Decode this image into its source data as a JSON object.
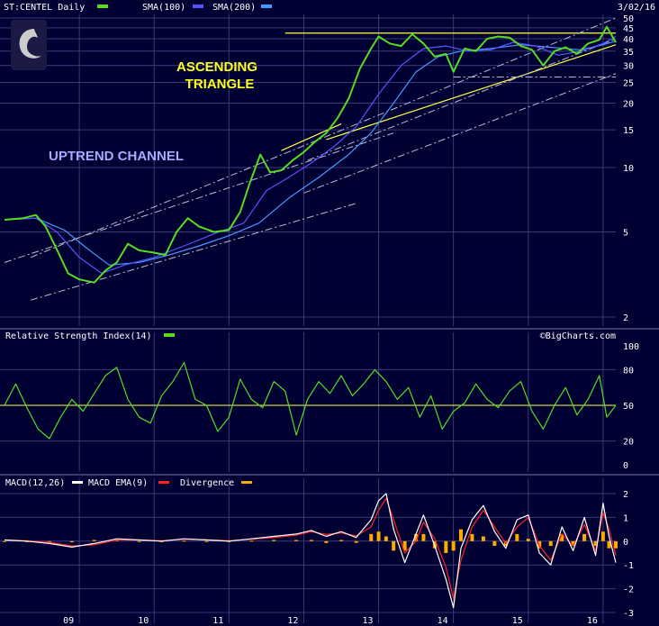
{
  "header": {
    "ticker_label": "ST:CENTEL Daily",
    "sma100_label": "SMA(100)",
    "sma200_label": "SMA(200)",
    "date": "3/02/16",
    "watermark": "©BigCharts.com"
  },
  "colors": {
    "background": "#000033",
    "grid": "#3a3a7a",
    "price": "#55dd22",
    "sma100": "#5555ff",
    "sma200": "#4499ff",
    "triangle": "#ffff44",
    "channel": "#bbbbcc",
    "rsi": "#55dd22",
    "rsi_mid": "#ffff44",
    "macd": "#ffffff",
    "macd_ema": "#ff2222",
    "divergence": "#ffaa00",
    "annotation_triangle": "#ffff22",
    "annotation_channel": "#aaaaff"
  },
  "annotations": {
    "triangle_line1": "ASCENDING",
    "triangle_line2": "TRIANGLE",
    "channel": "UPTREND CHANNEL"
  },
  "rsi_panel": {
    "label": "Relative Strength Index(14)"
  },
  "macd_panel": {
    "macd_label": "MACD(12,26)",
    "ema_label": "MACD EMA(9)",
    "divergence_label": "Divergence"
  },
  "chart_data": [
    {
      "type": "line",
      "scale": "log",
      "ylim": [
        2,
        50
      ],
      "yticks": [
        2,
        5,
        10,
        15,
        20,
        25,
        30,
        35,
        40,
        45,
        50
      ],
      "xticks": [
        "09",
        "10",
        "11",
        "12",
        "13",
        "14",
        "15",
        "16"
      ],
      "xlim": [
        2008.0,
        2016.17
      ],
      "series": [
        {
          "x": [
            2008.0,
            2008.25,
            2008.42,
            2008.55,
            2008.72,
            2008.85,
            2009.0,
            2009.2,
            2009.35,
            2009.5,
            2009.65,
            2009.8,
            2010.0,
            2010.15,
            2010.3,
            2010.45,
            2010.6,
            2010.8,
            2011.0,
            2011.15,
            2011.28,
            2011.42,
            2011.55,
            2011.7,
            2011.85,
            2012.0,
            2012.15,
            2012.3,
            2012.45,
            2012.6,
            2012.75,
            2012.9,
            2013.0,
            2013.15,
            2013.3,
            2013.45,
            2013.6,
            2013.75,
            2013.9,
            2014.0,
            2014.15,
            2014.3,
            2014.45,
            2014.6,
            2014.75,
            2014.9,
            2015.05,
            2015.2,
            2015.35,
            2015.5,
            2015.65,
            2015.8,
            2015.95,
            2016.05,
            2016.17
          ],
          "y": [
            5.7,
            5.8,
            6.0,
            5.3,
            4.0,
            3.2,
            3.0,
            2.9,
            3.3,
            3.6,
            4.4,
            4.1,
            4.0,
            3.9,
            5.0,
            5.8,
            5.3,
            5.0,
            5.1,
            6.2,
            8.5,
            11.5,
            9.5,
            9.7,
            10.8,
            11.8,
            13.2,
            14.5,
            17.0,
            21.0,
            29.0,
            36.0,
            41.0,
            38.0,
            37.0,
            42.0,
            38.0,
            33.0,
            34.0,
            28.0,
            36.0,
            35.0,
            40.0,
            41.0,
            40.5,
            37.0,
            35.5,
            30.0,
            35.0,
            36.5,
            34.0,
            38.0,
            39.5,
            45.5,
            38.5
          ]
        },
        {
          "x": [
            2008.0,
            2008.42,
            2008.7,
            2009.0,
            2009.3,
            2009.6,
            2010.0,
            2010.4,
            2010.8,
            2011.2,
            2011.5,
            2011.8,
            2012.1,
            2012.4,
            2012.7,
            2013.0,
            2013.3,
            2013.6,
            2013.9,
            2014.2,
            2014.5,
            2014.8,
            2015.1,
            2015.4,
            2015.7,
            2016.0,
            2016.17
          ],
          "y": [
            5.7,
            5.8,
            5.0,
            3.8,
            3.2,
            3.5,
            3.8,
            4.3,
            4.9,
            5.5,
            7.8,
            9.0,
            10.5,
            12.5,
            15.5,
            22.0,
            30.0,
            36.0,
            37.0,
            35.0,
            35.5,
            38.5,
            37.0,
            33.5,
            35.0,
            38.0,
            41.0
          ]
        },
        {
          "x": [
            2008.0,
            2008.42,
            2008.8,
            2009.1,
            2009.4,
            2009.8,
            2010.2,
            2010.6,
            2011.0,
            2011.4,
            2011.8,
            2012.2,
            2012.6,
            2012.9,
            2013.2,
            2013.5,
            2013.8,
            2014.1,
            2014.5,
            2014.9,
            2015.3,
            2015.7,
            2016.0,
            2016.17
          ],
          "y": [
            5.7,
            5.8,
            5.1,
            4.2,
            3.5,
            3.6,
            3.9,
            4.3,
            4.8,
            5.5,
            7.2,
            9.0,
            11.5,
            14.5,
            20.0,
            28.0,
            33.0,
            35.0,
            36.0,
            37.5,
            36.5,
            35.5,
            37.5,
            39.0
          ]
        }
      ]
    },
    {
      "type": "line",
      "ylim": [
        0,
        100
      ],
      "yticks": [
        0,
        20,
        50,
        80,
        100
      ],
      "reference_line": 50,
      "series": [
        {
          "x": [
            2008.0,
            2008.15,
            2008.3,
            2008.45,
            2008.6,
            2008.75,
            2008.9,
            2009.05,
            2009.2,
            2009.35,
            2009.5,
            2009.65,
            2009.8,
            2009.95,
            2010.1,
            2010.25,
            2010.4,
            2010.55,
            2010.7,
            2010.85,
            2011.0,
            2011.15,
            2011.3,
            2011.45,
            2011.6,
            2011.75,
            2011.9,
            2012.05,
            2012.2,
            2012.35,
            2012.5,
            2012.65,
            2012.8,
            2012.95,
            2013.1,
            2013.25,
            2013.4,
            2013.55,
            2013.7,
            2013.85,
            2014.0,
            2014.15,
            2014.3,
            2014.45,
            2014.6,
            2014.75,
            2014.9,
            2015.05,
            2015.2,
            2015.35,
            2015.5,
            2015.65,
            2015.8,
            2015.95,
            2016.05,
            2016.17
          ],
          "y": [
            50,
            68,
            48,
            30,
            22,
            40,
            55,
            45,
            60,
            75,
            82,
            55,
            40,
            35,
            58,
            70,
            86,
            55,
            50,
            28,
            40,
            72,
            55,
            48,
            70,
            62,
            25,
            55,
            70,
            60,
            75,
            58,
            68,
            80,
            70,
            55,
            65,
            40,
            58,
            30,
            45,
            52,
            68,
            55,
            48,
            62,
            70,
            45,
            30,
            50,
            65,
            42,
            55,
            75,
            40,
            50
          ]
        }
      ]
    },
    {
      "type": "line",
      "ylim": [
        -3,
        2
      ],
      "yticks": [
        -3,
        -2,
        -1,
        0,
        1,
        2
      ],
      "series": [
        {
          "x": [
            2008.0,
            2008.3,
            2008.6,
            2008.9,
            2009.2,
            2009.5,
            2009.8,
            2010.1,
            2010.4,
            2010.7,
            2011.0,
            2011.3,
            2011.6,
            2011.9,
            2012.1,
            2012.3,
            2012.5,
            2012.7,
            2012.9,
            2013.0,
            2013.1,
            2013.2,
            2013.35,
            2013.5,
            2013.6,
            2013.75,
            2013.9,
            2014.0,
            2014.1,
            2014.25,
            2014.4,
            2014.55,
            2014.7,
            2014.85,
            2015.0,
            2015.15,
            2015.3,
            2015.45,
            2015.6,
            2015.75,
            2015.9,
            2016.0,
            2016.08,
            2016.17
          ],
          "y": [
            0.05,
            0.0,
            -0.1,
            -0.25,
            -0.1,
            0.1,
            0.05,
            0.0,
            0.1,
            0.05,
            0.0,
            0.1,
            0.2,
            0.3,
            0.45,
            0.2,
            0.4,
            0.15,
            0.9,
            1.7,
            2.0,
            0.5,
            -0.9,
            0.3,
            1.1,
            -0.2,
            -1.6,
            -2.8,
            -0.3,
            0.9,
            1.5,
            0.4,
            -0.3,
            0.9,
            1.1,
            -0.5,
            -1.0,
            0.6,
            -0.4,
            1.0,
            -0.6,
            1.6,
            0.2,
            -0.9
          ]
        },
        {
          "x": [
            2008.0,
            2008.3,
            2008.6,
            2008.9,
            2009.2,
            2009.5,
            2009.8,
            2010.1,
            2010.4,
            2010.7,
            2011.0,
            2011.3,
            2011.6,
            2011.9,
            2012.1,
            2012.3,
            2012.5,
            2012.7,
            2012.9,
            2013.0,
            2013.1,
            2013.2,
            2013.35,
            2013.5,
            2013.6,
            2013.75,
            2013.9,
            2014.0,
            2014.1,
            2014.25,
            2014.4,
            2014.55,
            2014.7,
            2014.85,
            2015.0,
            2015.15,
            2015.3,
            2015.45,
            2015.6,
            2015.75,
            2015.9,
            2016.0,
            2016.08,
            2016.17
          ],
          "y": [
            0.05,
            0.02,
            -0.05,
            -0.2,
            -0.15,
            0.05,
            0.05,
            0.02,
            0.08,
            0.06,
            0.02,
            0.08,
            0.15,
            0.25,
            0.4,
            0.28,
            0.35,
            0.22,
            0.6,
            1.3,
            1.8,
            0.9,
            -0.5,
            0.0,
            0.8,
            0.1,
            -1.1,
            -2.4,
            -0.8,
            0.6,
            1.3,
            0.6,
            -0.1,
            0.6,
            1.0,
            -0.2,
            -0.8,
            0.3,
            -0.2,
            0.7,
            -0.4,
            1.2,
            0.5,
            -0.6
          ]
        },
        {
          "x": [
            2008.0,
            2008.3,
            2008.6,
            2008.9,
            2009.2,
            2009.5,
            2009.8,
            2010.1,
            2010.4,
            2010.7,
            2011.0,
            2011.3,
            2011.6,
            2011.9,
            2012.1,
            2012.3,
            2012.5,
            2012.7,
            2012.9,
            2013.0,
            2013.1,
            2013.2,
            2013.35,
            2013.5,
            2013.6,
            2013.75,
            2013.9,
            2014.0,
            2014.1,
            2014.25,
            2014.4,
            2014.55,
            2014.7,
            2014.85,
            2015.0,
            2015.15,
            2015.3,
            2015.45,
            2015.6,
            2015.75,
            2015.9,
            2016.0,
            2016.08,
            2016.17
          ],
          "y": [
            0.0,
            -0.02,
            -0.05,
            -0.05,
            0.05,
            0.05,
            0.0,
            -0.02,
            0.02,
            -0.01,
            -0.02,
            0.02,
            0.05,
            0.05,
            0.05,
            -0.08,
            0.05,
            -0.07,
            0.3,
            0.4,
            0.2,
            -0.4,
            -0.4,
            0.3,
            0.3,
            -0.3,
            -0.5,
            -0.4,
            0.5,
            0.3,
            0.2,
            -0.2,
            -0.2,
            0.3,
            0.1,
            -0.3,
            -0.2,
            0.3,
            -0.2,
            0.3,
            -0.2,
            0.4,
            -0.3,
            -0.3
          ]
        }
      ]
    }
  ]
}
